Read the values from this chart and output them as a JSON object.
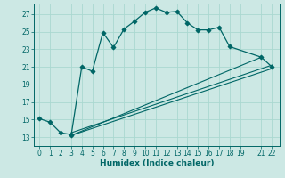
{
  "title": "",
  "xlabel": "Humidex (Indice chaleur)",
  "bg_color": "#cce8e4",
  "grid_color": "#aad8d0",
  "line_color": "#006666",
  "spine_color": "#006666",
  "xlim": [
    -0.5,
    22.7
  ],
  "ylim": [
    12.0,
    28.2
  ],
  "yticks": [
    13,
    15,
    17,
    19,
    21,
    23,
    25,
    27
  ],
  "xticks": [
    0,
    1,
    2,
    3,
    4,
    5,
    6,
    7,
    8,
    9,
    10,
    11,
    12,
    13,
    14,
    15,
    16,
    17,
    18,
    19,
    21,
    22
  ],
  "main_x": [
    0,
    1,
    2,
    3,
    3,
    4,
    5,
    6,
    7,
    8,
    9,
    10,
    11,
    12,
    13,
    14,
    15,
    16,
    17,
    18,
    21,
    22
  ],
  "main_y": [
    15.1,
    14.7,
    13.5,
    13.3,
    13.2,
    21.0,
    20.5,
    24.9,
    23.2,
    25.3,
    26.2,
    27.2,
    27.7,
    27.2,
    27.3,
    26.0,
    25.2,
    25.2,
    25.5,
    23.3,
    22.1,
    21.0
  ],
  "line1_x": [
    3,
    22
  ],
  "line1_y": [
    13.5,
    21.2
  ],
  "line2_x": [
    3,
    22
  ],
  "line2_y": [
    13.2,
    20.8
  ],
  "line3_x": [
    3,
    21
  ],
  "line3_y": [
    13.2,
    22.1
  ],
  "tick_fontsize": 5.5,
  "xlabel_fontsize": 6.5
}
